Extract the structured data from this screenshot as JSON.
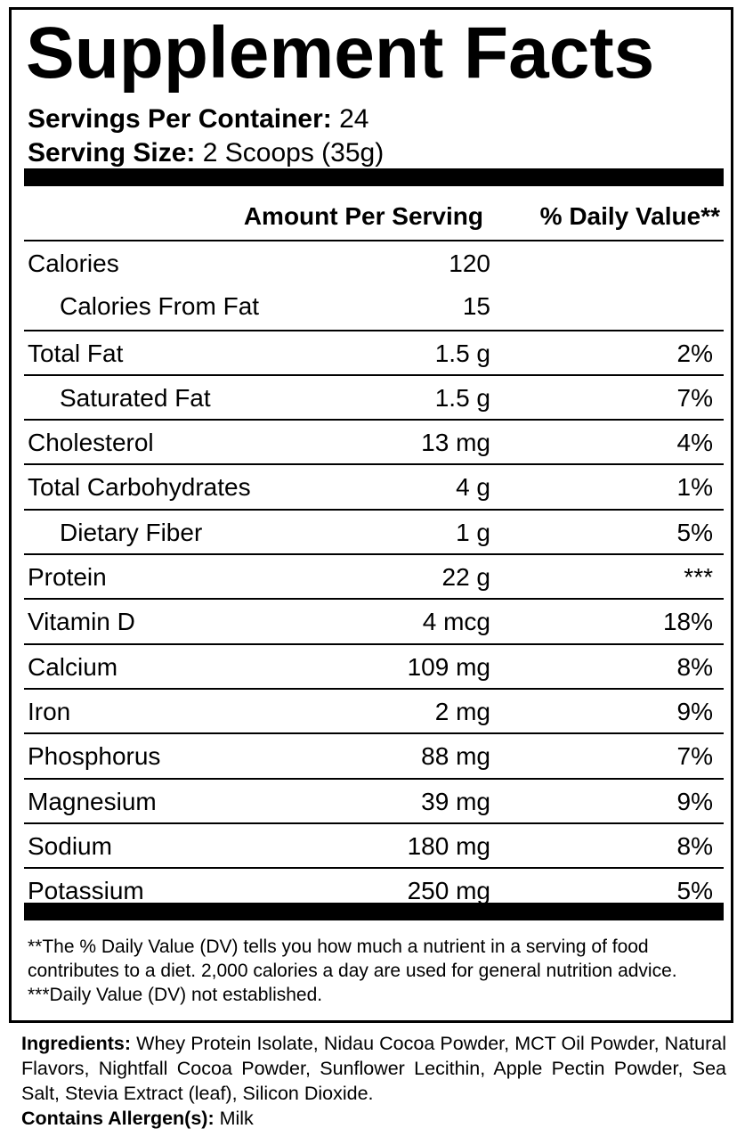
{
  "title": "Supplement Facts",
  "servings_per_container": {
    "label": "Servings Per Container:",
    "value": "24"
  },
  "serving_size": {
    "label": "Serving Size:",
    "value": "2 Scoops (35g)"
  },
  "columns": {
    "amount": "Amount Per Serving",
    "dv": "% Daily Value**"
  },
  "rows": [
    {
      "name": "Calories",
      "amount": "120",
      "dv": "",
      "indent": false
    },
    {
      "name": "Calories From Fat",
      "amount": "15",
      "dv": "",
      "indent": true
    },
    {
      "name": "Total Fat",
      "amount": "1.5 g",
      "dv": "2%",
      "indent": false
    },
    {
      "name": "Saturated Fat",
      "amount": "1.5 g",
      "dv": "7%",
      "indent": true
    },
    {
      "name": "Cholesterol",
      "amount": "13 mg",
      "dv": "4%",
      "indent": false
    },
    {
      "name": "Total Carbohydrates",
      "amount": "4 g",
      "dv": "1%",
      "indent": false
    },
    {
      "name": "Dietary Fiber",
      "amount": "1 g",
      "dv": "5%",
      "indent": true
    },
    {
      "name": "Protein",
      "amount": "22 g",
      "dv": "***",
      "indent": false
    },
    {
      "name": "Vitamin D",
      "amount": "4 mcg",
      "dv": "18%",
      "indent": false
    },
    {
      "name": "Calcium",
      "amount": "109 mg",
      "dv": "8%",
      "indent": false
    },
    {
      "name": "Iron",
      "amount": "2 mg",
      "dv": "9%",
      "indent": false
    },
    {
      "name": "Phosphorus",
      "amount": "88 mg",
      "dv": "7%",
      "indent": false
    },
    {
      "name": "Magnesium",
      "amount": "39 mg",
      "dv": "9%",
      "indent": false
    },
    {
      "name": "Sodium",
      "amount": "180 mg",
      "dv": "8%",
      "indent": false
    },
    {
      "name": "Potassium",
      "amount": "250 mg",
      "dv": "5%",
      "indent": false
    }
  ],
  "footnotes": [
    "**The % Daily Value (DV) tells you how much a nutrient in a serving of food contributes to a diet. 2,000 calories a day are used for general nutrition advice.",
    "***Daily Value (DV) not established."
  ],
  "ingredients": {
    "label": "Ingredients:",
    "text": "Whey Protein Isolate, Nidau Cocoa Powder, MCT Oil Powder, Natural Flavors, Nightfall Cocoa Powder, Sunflower Lecithin, Apple Pectin Powder, Sea Salt, Stevia Extract (leaf), Silicon Dioxide."
  },
  "allergens": {
    "label": "Contains Allergen(s):",
    "text": "Milk"
  }
}
